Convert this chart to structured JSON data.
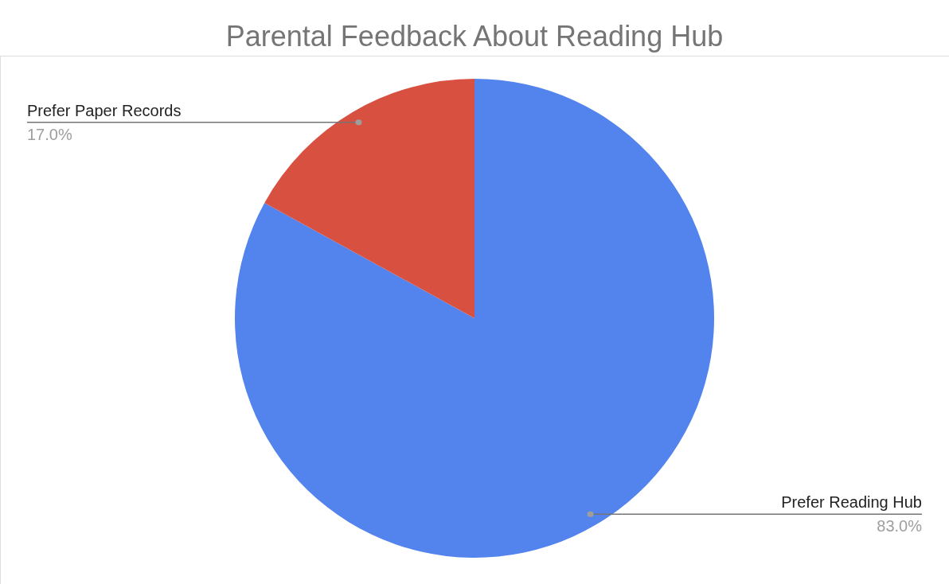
{
  "chart_data": {
    "type": "pie",
    "title": "Parental Feedback About Reading Hub",
    "categories": [
      "Prefer Reading Hub",
      "Prefer Paper Records"
    ],
    "values": [
      83,
      17
    ],
    "colors": [
      "#5383ec",
      "#d85140"
    ],
    "value_labels": [
      "83.0%",
      "17.0%"
    ]
  }
}
